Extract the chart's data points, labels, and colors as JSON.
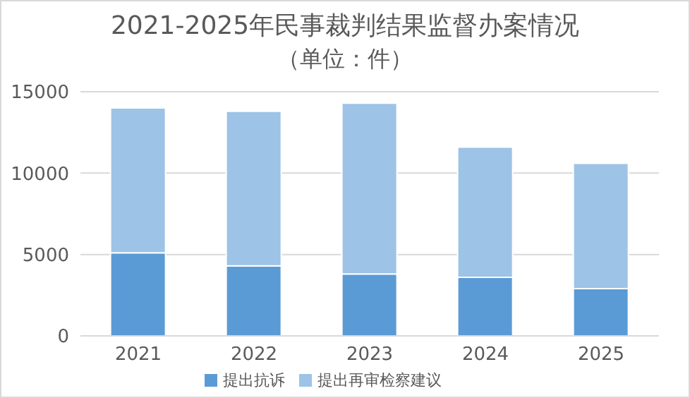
{
  "chart_data": {
    "type": "bar",
    "title": "2021-2025年民事裁判结果监督办案情况",
    "subtitle": "（单位：件）",
    "categories": [
      "2021",
      "2022",
      "2023",
      "2024",
      "2025"
    ],
    "stacked": true,
    "series": [
      {
        "name": "提出抗诉",
        "color": "#5b9bd5",
        "values": [
          5100,
          4300,
          3800,
          3600,
          2900
        ]
      },
      {
        "name": "提出再审检察建议",
        "color": "#9dc3e6",
        "values": [
          8900,
          9500,
          10500,
          8000,
          7700
        ]
      }
    ],
    "ylim": [
      0,
      15000
    ],
    "yticks": [
      0,
      5000,
      10000,
      15000
    ],
    "grid": "y",
    "legend": "bottom"
  }
}
